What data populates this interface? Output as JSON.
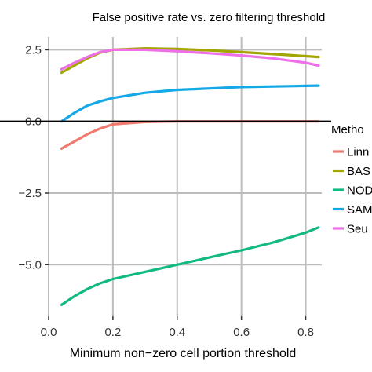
{
  "chart_data": {
    "type": "line",
    "title": "False positive rate vs. zero filtering threshold",
    "xlabel": "Minimum non−zero cell portion threshold",
    "ylabel": "",
    "xlim": [
      0.0,
      0.85
    ],
    "ylim": [
      -6.8,
      2.95
    ],
    "x_ticks": [
      0.0,
      0.2,
      0.4,
      0.6,
      0.8
    ],
    "x_tick_labels": [
      "0.0",
      "0.2",
      "0.4",
      "0.6",
      "0.8"
    ],
    "y_ticks": [
      2.5,
      0.0,
      -2.5,
      -5.0
    ],
    "y_tick_labels": [
      "2.5",
      "0.0",
      "−2.5",
      "−5.0"
    ],
    "grid": true,
    "background": "#ffffff",
    "grid_color": "#bdbdbd",
    "reference_line": {
      "y": 0.0,
      "color": "#000000"
    },
    "legend": {
      "title": "Metho",
      "placement": "right",
      "labels": [
        "Linn",
        "BAS",
        "NOD",
        "SAM",
        "Seu"
      ]
    },
    "series": [
      {
        "color": "#f07a6f",
        "x": [
          0.04,
          0.08,
          0.12,
          0.16,
          0.2,
          0.3,
          0.4,
          0.5,
          0.6,
          0.7,
          0.8,
          0.84
        ],
        "y": [
          -0.95,
          -0.7,
          -0.45,
          -0.25,
          -0.1,
          -0.02,
          0.0,
          0.0,
          0.0,
          0.0,
          0.0,
          0.0
        ]
      },
      {
        "color": "#a3a500",
        "x": [
          0.04,
          0.08,
          0.12,
          0.16,
          0.2,
          0.3,
          0.4,
          0.5,
          0.6,
          0.7,
          0.8,
          0.84
        ],
        "y": [
          1.7,
          1.95,
          2.2,
          2.4,
          2.5,
          2.55,
          2.53,
          2.48,
          2.42,
          2.35,
          2.28,
          2.25
        ]
      },
      {
        "color": "#13b982",
        "x": [
          0.04,
          0.08,
          0.12,
          0.16,
          0.2,
          0.3,
          0.4,
          0.5,
          0.6,
          0.7,
          0.8,
          0.84
        ],
        "y": [
          -6.4,
          -6.1,
          -5.85,
          -5.65,
          -5.5,
          -5.25,
          -5.0,
          -4.75,
          -4.5,
          -4.22,
          -3.88,
          -3.7
        ]
      },
      {
        "color": "#14a8e6",
        "x": [
          0.04,
          0.08,
          0.12,
          0.16,
          0.2,
          0.3,
          0.4,
          0.5,
          0.6,
          0.7,
          0.8,
          0.84
        ],
        "y": [
          0.0,
          0.3,
          0.55,
          0.7,
          0.82,
          1.0,
          1.1,
          1.15,
          1.2,
          1.22,
          1.24,
          1.25
        ]
      },
      {
        "color": "#ee6fe8",
        "x": [
          0.04,
          0.08,
          0.12,
          0.16,
          0.2,
          0.3,
          0.4,
          0.5,
          0.6,
          0.7,
          0.8,
          0.84
        ],
        "y": [
          1.82,
          2.05,
          2.25,
          2.42,
          2.5,
          2.5,
          2.45,
          2.38,
          2.3,
          2.2,
          2.05,
          1.95
        ]
      }
    ]
  }
}
